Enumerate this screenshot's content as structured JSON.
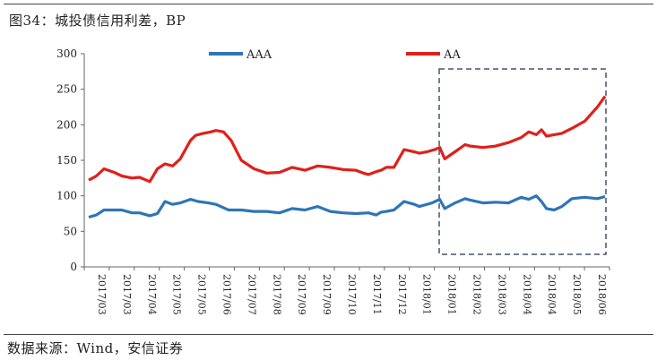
{
  "header": {
    "title": "图34：城投债信用利差，BP"
  },
  "footer": {
    "source": "数据来源：Wind，安信证券"
  },
  "chart_data": {
    "type": "line",
    "title": "图34：城投债信用利差，BP",
    "xlabel": "",
    "ylabel": "",
    "ylim": [
      0,
      300
    ],
    "yticks": [
      0,
      50,
      100,
      150,
      200,
      250,
      300
    ],
    "grid": false,
    "legend_position": "top",
    "x_tick_labels": [
      "2017/03",
      "2017/03",
      "2017/04",
      "2017/05",
      "2017/05",
      "2017/06",
      "2017/07",
      "2017/08",
      "2017/09",
      "2017/09",
      "2017/10",
      "2017/11",
      "2017/12",
      "2018/01",
      "2018/01",
      "2018/02",
      "2018/03",
      "2018/04",
      "2018/04",
      "2018/05",
      "2018/06"
    ],
    "series": [
      {
        "name": "AAA",
        "color": "#2E75B6",
        "x": [
          0,
          0.3,
          0.6,
          1,
          1.3,
          1.7,
          2,
          2.4,
          2.7,
          3,
          3.3,
          3.6,
          4,
          4.3,
          4.7,
          5,
          5.5,
          6,
          6.5,
          7,
          7.5,
          8,
          8.5,
          9,
          9.5,
          10,
          10.5,
          11,
          11.3,
          11.5,
          11.7,
          12,
          12.4,
          12.8,
          13,
          13.2,
          13.5,
          13.8,
          14,
          14.4,
          14.8,
          15,
          15.5,
          16,
          16.5,
          17,
          17.3,
          17.6,
          17.8,
          18,
          18.3,
          18.6,
          19,
          19.5,
          20,
          20.3
        ],
        "values": [
          70,
          73,
          80,
          80,
          80,
          76,
          76,
          72,
          75,
          92,
          88,
          90,
          95,
          92,
          90,
          88,
          80,
          80,
          78,
          78,
          76,
          82,
          80,
          85,
          78,
          76,
          75,
          76,
          73,
          77,
          78,
          80,
          92,
          88,
          85,
          87,
          90,
          95,
          82,
          90,
          96,
          94,
          90,
          91,
          90,
          98,
          95,
          100,
          92,
          82,
          80,
          85,
          96,
          98,
          96,
          99
        ]
      },
      {
        "name": "AA",
        "color": "#E0201B",
        "x": [
          0,
          0.3,
          0.6,
          1,
          1.3,
          1.7,
          2,
          2.4,
          2.7,
          3,
          3.3,
          3.6,
          4,
          4.2,
          4.5,
          4.8,
          5,
          5.3,
          5.6,
          6,
          6.5,
          7,
          7.5,
          8,
          8.5,
          9,
          9.5,
          10,
          10.5,
          10.8,
          11,
          11.3,
          11.5,
          11.7,
          12,
          12.4,
          12.8,
          13,
          13.3,
          13.6,
          13.8,
          14,
          14.4,
          14.8,
          15,
          15.5,
          16,
          16.5,
          17,
          17.3,
          17.6,
          17.8,
          18,
          18.3,
          18.6,
          19,
          19.5,
          20,
          20.3
        ],
        "values": [
          122,
          128,
          138,
          133,
          128,
          125,
          126,
          120,
          138,
          145,
          142,
          152,
          178,
          185,
          188,
          190,
          192,
          190,
          178,
          150,
          138,
          132,
          133,
          140,
          136,
          142,
          140,
          137,
          136,
          132,
          130,
          134,
          136,
          140,
          140,
          165,
          162,
          160,
          162,
          165,
          168,
          152,
          162,
          172,
          170,
          168,
          170,
          175,
          182,
          190,
          186,
          193,
          184,
          186,
          188,
          195,
          205,
          225,
          240
        ]
      }
    ]
  }
}
